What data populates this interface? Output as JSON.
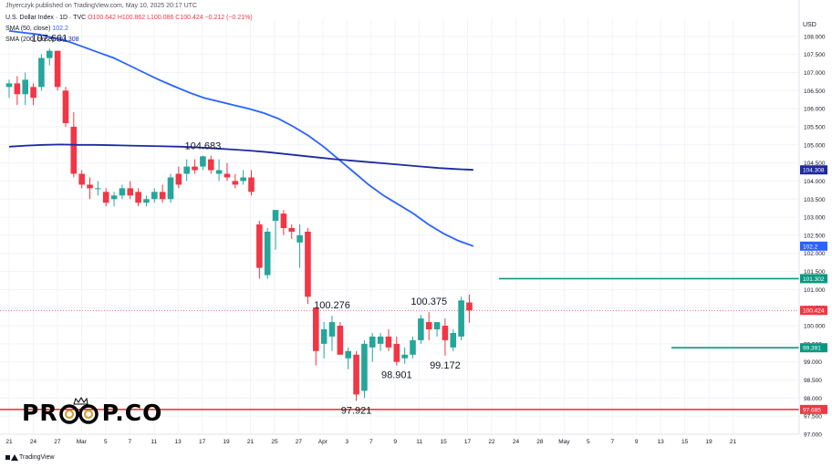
{
  "header": {
    "publisher": "Jhyerczyk published on TradingView.com, May 10, 2025 20:17 UTC",
    "symbol": "U.S. Dollar Index · 1D · TVC",
    "ohlc": "O100.642 H100.862 L100.086 C100.424 −0.212 (−0.21%)",
    "sma50_label": "SMA (50, close)",
    "sma50_value": "102.2",
    "sma200_label": "SMA (200, close)",
    "sma200_value": "104.308"
  },
  "currency_label": "USD",
  "footer": {
    "brand": "TradingView"
  },
  "watermark": {
    "left": "PR",
    "right": "P.CO"
  },
  "colors": {
    "up": "#26a69a",
    "down": "#f23645",
    "sma50": "#2962ff",
    "sma200": "#1e2a9e",
    "support": "#f23645",
    "level": "#089981",
    "grid": "#f0f3fa"
  },
  "chart_data": {
    "type": "candlestick",
    "ylim": [
      97.0,
      108.5
    ],
    "y_ticks": [
      97.0,
      97.5,
      98.0,
      98.5,
      99.0,
      99.5,
      100.0,
      100.5,
      101.0,
      101.5,
      102.0,
      102.5,
      103.0,
      103.5,
      104.0,
      104.5,
      105.0,
      105.5,
      106.0,
      106.5,
      107.0,
      107.5,
      108.0
    ],
    "y_tick_labels": [
      "97.000",
      "97.500",
      "98.000",
      "98.500",
      "99.000",
      "99.500",
      "100.000",
      "100.500",
      "101.000",
      "101.500",
      "102.000",
      "102.500",
      "103.000",
      "103.500",
      "104.000",
      "104.500",
      "105.000",
      "105.500",
      "106.000",
      "106.500",
      "107.000",
      "107.500",
      "108.000"
    ],
    "x_ticks": [
      "21",
      "24",
      "27",
      "Mar",
      "5",
      "7",
      "11",
      "13",
      "17",
      "19",
      "21",
      "25",
      "27",
      "Apr",
      "3",
      "7",
      "9",
      "11",
      "15",
      "17",
      "22",
      "24",
      "28",
      "May",
      "5",
      "7",
      "9",
      "13",
      "15",
      "19",
      "21"
    ],
    "candles": [
      {
        "o": 106.6,
        "h": 106.8,
        "l": 106.3,
        "c": 106.7
      },
      {
        "o": 106.7,
        "h": 106.9,
        "l": 106.1,
        "c": 106.4
      },
      {
        "o": 106.4,
        "h": 107.0,
        "l": 106.1,
        "c": 106.8
      },
      {
        "o": 106.6,
        "h": 106.7,
        "l": 106.1,
        "c": 106.3
      },
      {
        "o": 106.6,
        "h": 107.5,
        "l": 106.5,
        "c": 107.4
      },
      {
        "o": 107.4,
        "h": 107.661,
        "l": 107.2,
        "c": 107.6
      },
      {
        "o": 107.6,
        "h": 107.6,
        "l": 106.5,
        "c": 106.6
      },
      {
        "o": 106.5,
        "h": 106.6,
        "l": 105.5,
        "c": 105.6
      },
      {
        "o": 105.5,
        "h": 105.9,
        "l": 104.1,
        "c": 104.2
      },
      {
        "o": 104.2,
        "h": 104.3,
        "l": 103.8,
        "c": 103.9
      },
      {
        "o": 103.9,
        "h": 104.1,
        "l": 103.5,
        "c": 103.8
      },
      {
        "o": 103.8,
        "h": 104.0,
        "l": 103.6,
        "c": 103.8
      },
      {
        "o": 103.7,
        "h": 103.8,
        "l": 103.3,
        "c": 103.4
      },
      {
        "o": 103.5,
        "h": 103.7,
        "l": 103.3,
        "c": 103.6
      },
      {
        "o": 103.6,
        "h": 103.9,
        "l": 103.5,
        "c": 103.8
      },
      {
        "o": 103.8,
        "h": 104.0,
        "l": 103.5,
        "c": 103.6
      },
      {
        "o": 103.7,
        "h": 103.8,
        "l": 103.3,
        "c": 103.4
      },
      {
        "o": 103.4,
        "h": 103.6,
        "l": 103.3,
        "c": 103.5
      },
      {
        "o": 103.5,
        "h": 103.8,
        "l": 103.4,
        "c": 103.7
      },
      {
        "o": 103.7,
        "h": 103.9,
        "l": 103.4,
        "c": 103.5
      },
      {
        "o": 103.5,
        "h": 104.2,
        "l": 103.4,
        "c": 104.1
      },
      {
        "o": 104.2,
        "h": 104.4,
        "l": 103.8,
        "c": 103.9
      },
      {
        "o": 104.2,
        "h": 104.6,
        "l": 104.0,
        "c": 104.4
      },
      {
        "o": 104.4,
        "h": 104.6,
        "l": 104.2,
        "c": 104.3
      },
      {
        "o": 104.4,
        "h": 104.7,
        "l": 104.3,
        "c": 104.683
      },
      {
        "o": 104.6,
        "h": 104.7,
        "l": 104.2,
        "c": 104.3
      },
      {
        "o": 104.2,
        "h": 104.6,
        "l": 104.0,
        "c": 104.3
      },
      {
        "o": 104.2,
        "h": 104.5,
        "l": 104.0,
        "c": 104.1
      },
      {
        "o": 104.0,
        "h": 104.2,
        "l": 103.8,
        "c": 103.9
      },
      {
        "o": 104.0,
        "h": 104.3,
        "l": 103.9,
        "c": 104.1
      },
      {
        "o": 104.1,
        "h": 104.3,
        "l": 103.6,
        "c": 103.7
      },
      {
        "o": 102.8,
        "h": 102.9,
        "l": 101.3,
        "c": 101.6
      },
      {
        "o": 101.4,
        "h": 102.7,
        "l": 101.3,
        "c": 102.6
      },
      {
        "o": 102.9,
        "h": 103.2,
        "l": 102.1,
        "c": 103.2
      },
      {
        "o": 103.1,
        "h": 103.2,
        "l": 102.5,
        "c": 102.7
      },
      {
        "o": 102.7,
        "h": 102.8,
        "l": 102.4,
        "c": 102.6
      },
      {
        "o": 102.3,
        "h": 102.8,
        "l": 101.6,
        "c": 102.5
      },
      {
        "o": 102.6,
        "h": 102.7,
        "l": 100.6,
        "c": 100.8
      },
      {
        "o": 100.5,
        "h": 100.5,
        "l": 98.9,
        "c": 99.3
      },
      {
        "o": 99.5,
        "h": 100.1,
        "l": 99.1,
        "c": 99.9
      },
      {
        "o": 99.7,
        "h": 100.276,
        "l": 99.3,
        "c": 100.1
      },
      {
        "o": 100.0,
        "h": 100.1,
        "l": 99.2,
        "c": 99.2
      },
      {
        "o": 99.1,
        "h": 99.4,
        "l": 98.8,
        "c": 99.3
      },
      {
        "o": 99.2,
        "h": 99.3,
        "l": 97.921,
        "c": 98.1
      },
      {
        "o": 98.2,
        "h": 99.6,
        "l": 98.0,
        "c": 99.5
      },
      {
        "o": 99.4,
        "h": 99.8,
        "l": 99.0,
        "c": 99.7
      },
      {
        "o": 99.5,
        "h": 99.8,
        "l": 99.3,
        "c": 99.7
      },
      {
        "o": 99.7,
        "h": 99.9,
        "l": 99.3,
        "c": 99.4
      },
      {
        "o": 99.5,
        "h": 99.7,
        "l": 98.901,
        "c": 99.0
      },
      {
        "o": 99.1,
        "h": 99.4,
        "l": 98.95,
        "c": 99.2
      },
      {
        "o": 99.2,
        "h": 99.7,
        "l": 99.1,
        "c": 99.6
      },
      {
        "o": 99.6,
        "h": 100.3,
        "l": 99.5,
        "c": 100.2
      },
      {
        "o": 100.1,
        "h": 100.375,
        "l": 99.6,
        "c": 99.9
      },
      {
        "o": 99.9,
        "h": 100.1,
        "l": 99.7,
        "c": 100.1
      },
      {
        "o": 100.0,
        "h": 100.2,
        "l": 99.172,
        "c": 99.6
      },
      {
        "o": 99.4,
        "h": 99.9,
        "l": 99.3,
        "c": 99.8
      },
      {
        "o": 99.7,
        "h": 100.8,
        "l": 99.6,
        "c": 100.7
      },
      {
        "o": 100.642,
        "h": 100.862,
        "l": 100.086,
        "c": 100.424
      }
    ],
    "sma50": [
      108.15,
      108.1,
      108.05,
      107.95,
      107.85,
      107.7,
      107.55,
      107.4,
      107.2,
      107.0,
      106.8,
      106.62,
      106.45,
      106.3,
      106.2,
      106.1,
      106.0,
      105.88,
      105.72,
      105.5,
      105.25,
      104.95,
      104.6,
      104.25,
      103.9,
      103.6,
      103.35,
      103.1,
      102.8,
      102.55,
      102.35,
      102.2
    ],
    "sma200": [
      104.95,
      104.98,
      105.0,
      105.01,
      105.0,
      105.0,
      104.99,
      104.98,
      104.97,
      104.96,
      104.95,
      104.93,
      104.9,
      104.87,
      104.84,
      104.8,
      104.75,
      104.7,
      104.65,
      104.6,
      104.56,
      104.52,
      104.48,
      104.44,
      104.4,
      104.36,
      104.33,
      104.308
    ],
    "levels": [
      {
        "name": "support",
        "value": 97.685,
        "label": "97.685",
        "color": "#f23645"
      },
      {
        "name": "resistance",
        "value": 101.302,
        "label": "101.302",
        "color": "#089981"
      },
      {
        "name": "mid-level",
        "value": 99.391,
        "label": "99.391",
        "color": "#089981"
      }
    ],
    "last_price": {
      "value": 100.424,
      "label": "100.424"
    },
    "sma50_badge": "102.2",
    "sma200_badge": "104.308",
    "annotations": [
      {
        "text": "107.661",
        "value": 107.661,
        "candle": 5,
        "pos": "above"
      },
      {
        "text": "104.683",
        "value": 104.683,
        "candle": 24,
        "pos": "above"
      },
      {
        "text": "100.276",
        "value": 100.276,
        "candle": 40,
        "pos": "above"
      },
      {
        "text": "97.921",
        "value": 97.921,
        "candle": 43,
        "pos": "below"
      },
      {
        "text": "98.901",
        "value": 98.901,
        "candle": 48,
        "pos": "below"
      },
      {
        "text": "100.375",
        "value": 100.375,
        "candle": 52,
        "pos": "above"
      },
      {
        "text": "99.172",
        "value": 99.172,
        "candle": 54,
        "pos": "below"
      }
    ]
  }
}
